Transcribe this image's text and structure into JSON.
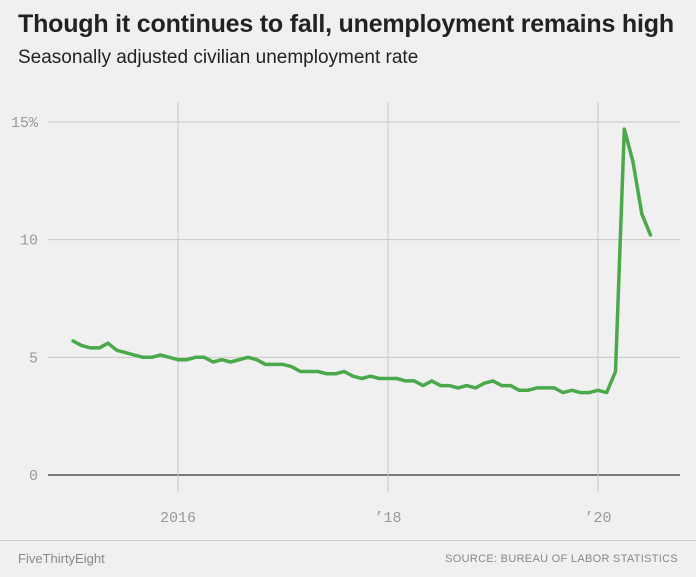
{
  "chart_data": {
    "type": "line",
    "title": "Though it continues to fall, unemployment remains high",
    "subtitle": "Seasonally adjusted civilian unemployment rate",
    "xlabel": "",
    "ylabel": "",
    "ylim": [
      0,
      15
    ],
    "y_ticks": [
      0,
      5,
      10,
      15
    ],
    "y_tick_labels": [
      "0",
      "5",
      "10",
      "15%"
    ],
    "x_ticks": [
      2016,
      2018,
      2020
    ],
    "x_tick_labels": [
      "2016",
      "’18",
      "’20"
    ],
    "grid": true,
    "series": [
      {
        "color": "#4aa94a",
        "start": "2015-01",
        "frequency": "monthly",
        "values": [
          5.7,
          5.5,
          5.4,
          5.4,
          5.6,
          5.3,
          5.2,
          5.1,
          5.0,
          5.0,
          5.1,
          5.0,
          4.9,
          4.9,
          5.0,
          5.0,
          4.8,
          4.9,
          4.8,
          4.9,
          5.0,
          4.9,
          4.7,
          4.7,
          4.7,
          4.6,
          4.4,
          4.4,
          4.4,
          4.3,
          4.3,
          4.4,
          4.2,
          4.1,
          4.2,
          4.1,
          4.1,
          4.1,
          4.0,
          4.0,
          3.8,
          4.0,
          3.8,
          3.8,
          3.7,
          3.8,
          3.7,
          3.9,
          4.0,
          3.8,
          3.8,
          3.6,
          3.6,
          3.7,
          3.7,
          3.7,
          3.5,
          3.6,
          3.5,
          3.5,
          3.6,
          3.5,
          4.4,
          14.7,
          13.3,
          11.1,
          10.2
        ]
      }
    ]
  },
  "footer": {
    "brand": "FiveThirtyEight",
    "source": "SOURCE: BUREAU OF LABOR STATISTICS"
  }
}
